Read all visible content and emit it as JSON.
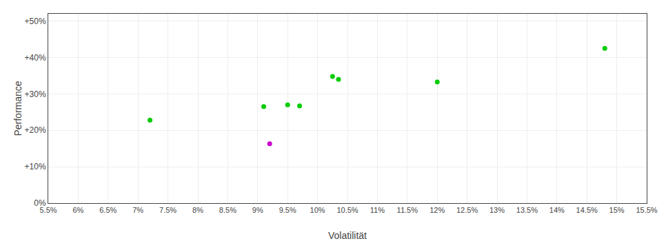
{
  "chart_data": {
    "type": "scatter",
    "xlabel": "Volatilität",
    "ylabel": "Performance",
    "xlim": [
      0.055,
      0.155
    ],
    "ylim": [
      0.0,
      0.52
    ],
    "xticks": [
      {
        "value": 0.055,
        "label": "5.5%"
      },
      {
        "value": 0.06,
        "label": "6%"
      },
      {
        "value": 0.065,
        "label": "6.5%"
      },
      {
        "value": 0.07,
        "label": "7%"
      },
      {
        "value": 0.075,
        "label": "7.5%"
      },
      {
        "value": 0.08,
        "label": "8%"
      },
      {
        "value": 0.085,
        "label": "8.5%"
      },
      {
        "value": 0.09,
        "label": "9%"
      },
      {
        "value": 0.095,
        "label": "9.5%"
      },
      {
        "value": 0.1,
        "label": "10%"
      },
      {
        "value": 0.105,
        "label": "10.5%"
      },
      {
        "value": 0.11,
        "label": "11%"
      },
      {
        "value": 0.115,
        "label": "11.5%"
      },
      {
        "value": 0.12,
        "label": "12%"
      },
      {
        "value": 0.125,
        "label": "12.5%"
      },
      {
        "value": 0.13,
        "label": "13%"
      },
      {
        "value": 0.135,
        "label": "13.5%"
      },
      {
        "value": 0.14,
        "label": "14%"
      },
      {
        "value": 0.145,
        "label": "14.5%"
      },
      {
        "value": 0.15,
        "label": "15%"
      },
      {
        "value": 0.155,
        "label": "15.5%"
      }
    ],
    "yticks": [
      {
        "value": 0.0,
        "label": "0%"
      },
      {
        "value": 0.1,
        "label": "+10%"
      },
      {
        "value": 0.2,
        "label": "+20%"
      },
      {
        "value": 0.3,
        "label": "+30%"
      },
      {
        "value": 0.4,
        "label": "+40%"
      },
      {
        "value": 0.5,
        "label": "+50%"
      }
    ],
    "grid": true,
    "series": [
      {
        "color": "#00cc00",
        "x": [
          0.072,
          0.091,
          0.095,
          0.097,
          0.1025,
          0.1035,
          0.12,
          0.148
        ],
        "values": [
          0.228,
          0.265,
          0.27,
          0.267,
          0.348,
          0.34,
          0.333,
          0.425
        ]
      },
      {
        "color": "#cc00cc",
        "x": [
          0.092
        ],
        "values": [
          0.163
        ]
      }
    ]
  }
}
